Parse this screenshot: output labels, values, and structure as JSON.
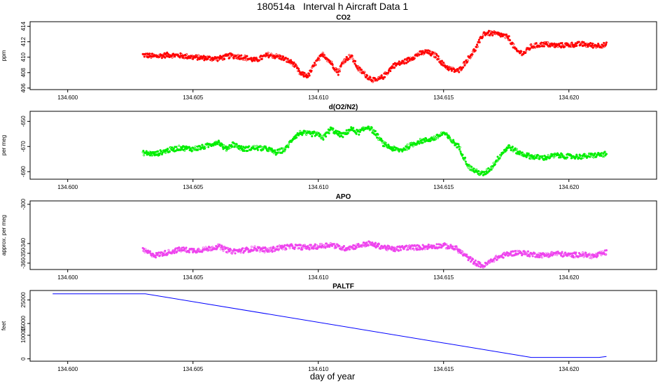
{
  "figure": {
    "title": "180514a   Interval h Aircraft Data 1",
    "xlabel": "day of year"
  },
  "chart_data": [
    {
      "type": "scatter",
      "title": "CO2",
      "ylabel": "ppm",
      "color": "#ff0000",
      "xlim": [
        134.5985,
        134.6235
      ],
      "ylim": [
        405.8,
        414.6
      ],
      "xticks": [
        "134.600",
        "134.605",
        "134.610",
        "134.615",
        "134.620"
      ],
      "yticks": [
        406,
        408,
        410,
        412,
        414
      ],
      "x_range": [
        134.603,
        134.6215
      ],
      "points": [
        [
          134.603,
          410.3
        ],
        [
          134.6035,
          410.1
        ],
        [
          134.604,
          410.3
        ],
        [
          134.6045,
          410.2
        ],
        [
          134.605,
          410.0
        ],
        [
          134.6055,
          409.9
        ],
        [
          134.606,
          409.8
        ],
        [
          134.6065,
          410.2
        ],
        [
          134.607,
          410.0
        ],
        [
          134.6075,
          409.6
        ],
        [
          134.608,
          410.3
        ],
        [
          134.6085,
          410.0
        ],
        [
          134.609,
          409.2
        ],
        [
          134.6093,
          407.8
        ],
        [
          134.6096,
          407.6
        ],
        [
          134.6099,
          409.3
        ],
        [
          134.6102,
          410.4
        ],
        [
          134.6105,
          409.3
        ],
        [
          134.6108,
          408.0
        ],
        [
          134.611,
          409.5
        ],
        [
          134.6113,
          410.2
        ],
        [
          134.6116,
          408.5
        ],
        [
          134.612,
          407.4
        ],
        [
          134.6123,
          406.9
        ],
        [
          134.6126,
          407.5
        ],
        [
          134.613,
          408.9
        ],
        [
          134.6135,
          409.5
        ],
        [
          134.614,
          410.4
        ],
        [
          134.6143,
          410.7
        ],
        [
          134.6147,
          410.2
        ],
        [
          134.615,
          409.0
        ],
        [
          134.6153,
          408.4
        ],
        [
          134.6156,
          408.2
        ],
        [
          134.616,
          409.9
        ],
        [
          134.6163,
          411.2
        ],
        [
          134.6166,
          413.1
        ],
        [
          134.6169,
          413.1
        ],
        [
          134.6173,
          412.9
        ],
        [
          134.6176,
          412.5
        ],
        [
          134.6179,
          410.8
        ],
        [
          134.6182,
          410.5
        ],
        [
          134.6185,
          411.4
        ],
        [
          134.619,
          411.7
        ],
        [
          134.6195,
          411.5
        ],
        [
          134.62,
          411.6
        ],
        [
          134.6205,
          411.7
        ],
        [
          134.621,
          411.5
        ],
        [
          134.6215,
          411.6
        ]
      ]
    },
    {
      "type": "scatter",
      "title": "d(O2/N2)",
      "ylabel": "per meg",
      "color": "#00ee00",
      "xlim": [
        134.5985,
        134.6235
      ],
      "ylim": [
        -696,
        -642
      ],
      "xticks": [
        "134.600",
        "134.605",
        "134.610",
        "134.615",
        "134.620"
      ],
      "yticks": [
        -650,
        -670,
        -690
      ],
      "x_range": [
        134.603,
        134.6215
      ],
      "points": [
        [
          134.603,
          -675.0
        ],
        [
          134.6035,
          -676.0
        ],
        [
          134.604,
          -673.0
        ],
        [
          134.6045,
          -671.0
        ],
        [
          134.605,
          -672.0
        ],
        [
          134.6055,
          -670.0
        ],
        [
          134.606,
          -666.0
        ],
        [
          134.6063,
          -672.0
        ],
        [
          134.6066,
          -668.0
        ],
        [
          134.607,
          -672.0
        ],
        [
          134.6075,
          -671.0
        ],
        [
          134.608,
          -672.0
        ],
        [
          134.6083,
          -675.0
        ],
        [
          134.6087,
          -672.0
        ],
        [
          134.609,
          -663.0
        ],
        [
          134.6093,
          -659.0
        ],
        [
          134.6096,
          -660.0
        ],
        [
          134.6099,
          -660.0
        ],
        [
          134.6102,
          -663.0
        ],
        [
          134.6105,
          -656.0
        ],
        [
          134.6108,
          -660.0
        ],
        [
          134.611,
          -661.0
        ],
        [
          134.6113,
          -656.0
        ],
        [
          134.6116,
          -659.0
        ],
        [
          134.612,
          -654.0
        ],
        [
          134.6123,
          -660.0
        ],
        [
          134.6126,
          -668.0
        ],
        [
          134.613,
          -672.0
        ],
        [
          134.6133,
          -673.0
        ],
        [
          134.6136,
          -670.0
        ],
        [
          134.614,
          -666.0
        ],
        [
          134.6143,
          -665.0
        ],
        [
          134.6147,
          -663.0
        ],
        [
          134.615,
          -659.0
        ],
        [
          134.6153,
          -665.0
        ],
        [
          134.6156,
          -670.0
        ],
        [
          134.616,
          -686.0
        ],
        [
          134.6163,
          -690.0
        ],
        [
          134.6166,
          -692.0
        ],
        [
          134.6169,
          -687.0
        ],
        [
          134.6173,
          -676.0
        ],
        [
          134.6176,
          -670.0
        ],
        [
          134.618,
          -675.0
        ],
        [
          134.6185,
          -678.0
        ],
        [
          134.619,
          -679.0
        ],
        [
          134.6195,
          -677.0
        ],
        [
          134.62,
          -678.0
        ],
        [
          134.6205,
          -678.0
        ],
        [
          134.621,
          -677.0
        ],
        [
          134.6215,
          -676.0
        ]
      ]
    },
    {
      "type": "scatter",
      "title": "APO",
      "ylabel": "approx. per meg",
      "color": "#ee44ee",
      "xlim": [
        134.5985,
        134.6235
      ],
      "ylim": [
        -366.5,
        -296.5
      ],
      "xticks": [
        "134.600",
        "134.605",
        "134.610",
        "134.615",
        "134.620"
      ],
      "yticks": [
        -300,
        -340,
        -350,
        -360
      ],
      "x_range": [
        134.603,
        134.6215
      ],
      "points": [
        [
          134.603,
          -347.0
        ],
        [
          134.6035,
          -352.0
        ],
        [
          134.604,
          -349.0
        ],
        [
          134.6045,
          -346.0
        ],
        [
          134.605,
          -347.0
        ],
        [
          134.6055,
          -346.0
        ],
        [
          134.606,
          -343.0
        ],
        [
          134.6065,
          -348.0
        ],
        [
          134.607,
          -347.0
        ],
        [
          134.6075,
          -345.0
        ],
        [
          134.608,
          -347.0
        ],
        [
          134.6085,
          -344.0
        ],
        [
          134.609,
          -343.0
        ],
        [
          134.6095,
          -344.0
        ],
        [
          134.61,
          -343.0
        ],
        [
          134.6105,
          -341.0
        ],
        [
          134.611,
          -345.0
        ],
        [
          134.6115,
          -343.0
        ],
        [
          134.612,
          -340.0
        ],
        [
          134.6125,
          -343.0
        ],
        [
          134.613,
          -346.0
        ],
        [
          134.6135,
          -344.0
        ],
        [
          134.614,
          -344.0
        ],
        [
          134.6145,
          -343.0
        ],
        [
          134.615,
          -342.0
        ],
        [
          134.6155,
          -345.0
        ],
        [
          134.616,
          -355.0
        ],
        [
          134.6163,
          -360.0
        ],
        [
          134.6166,
          -363.0
        ],
        [
          134.617,
          -356.0
        ],
        [
          134.6175,
          -351.0
        ],
        [
          134.618,
          -349.0
        ],
        [
          134.6185,
          -351.0
        ],
        [
          134.619,
          -352.0
        ],
        [
          134.6195,
          -350.0
        ],
        [
          134.62,
          -352.0
        ],
        [
          134.6205,
          -351.0
        ],
        [
          134.621,
          -353.0
        ],
        [
          134.6215,
          -349.0
        ]
      ]
    },
    {
      "type": "line",
      "title": "PALTF",
      "ylabel": "feet",
      "color": "#0000ff",
      "xlim": [
        134.5985,
        134.6235
      ],
      "ylim": [
        -1000,
        29000
      ],
      "xticks": [
        "134.600",
        "134.605",
        "134.610",
        "134.615",
        "134.620"
      ],
      "yticks": [
        0,
        10000,
        15000,
        25000
      ],
      "points": [
        [
          134.5994,
          27600
        ],
        [
          134.6031,
          27600
        ],
        [
          134.6185,
          600
        ],
        [
          134.6212,
          600
        ],
        [
          134.6215,
          1000
        ]
      ]
    }
  ]
}
